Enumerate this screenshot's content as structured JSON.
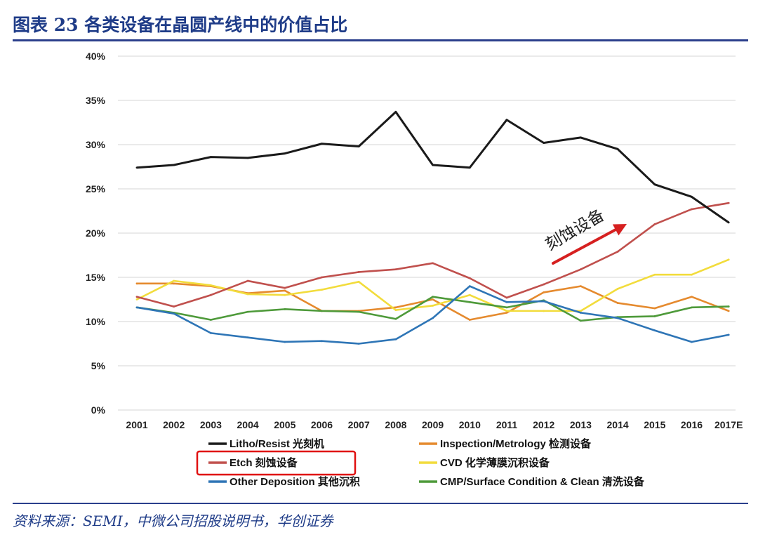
{
  "figure_title": "图表 23   各类设备在晶圆产线中的价值占比",
  "source_note": "资料来源：SEMI，中微公司招股说明书，华创证券",
  "chart_data": {
    "type": "line",
    "x": [
      "2001",
      "2002",
      "2003",
      "2004",
      "2005",
      "2006",
      "2007",
      "2008",
      "2009",
      "2010",
      "2011",
      "2012",
      "2013",
      "2014",
      "2015",
      "2016",
      "2017E"
    ],
    "yticks": [
      "0%",
      "5%",
      "10%",
      "15%",
      "20%",
      "25%",
      "30%",
      "35%",
      "40%"
    ],
    "ylim": [
      0,
      40
    ],
    "grid": true,
    "legend_position": "bottom",
    "series": [
      {
        "name": "Litho/Resist 光刻机",
        "color": "#1a1a1a",
        "values": [
          27.4,
          27.7,
          28.6,
          28.5,
          29.0,
          30.1,
          29.8,
          33.7,
          27.7,
          27.4,
          32.8,
          30.2,
          30.8,
          29.5,
          25.5,
          24.1,
          21.2
        ]
      },
      {
        "name": "Etch 刻蚀设备",
        "color": "#c0504d",
        "values": [
          12.8,
          11.7,
          13.0,
          14.6,
          13.8,
          15.0,
          15.6,
          15.9,
          16.6,
          14.9,
          12.7,
          14.2,
          15.9,
          17.9,
          21.0,
          22.7,
          23.4
        ]
      },
      {
        "name": "Other Deposition 其他沉积",
        "color": "#2e75b6",
        "values": [
          11.6,
          10.9,
          8.7,
          8.2,
          7.7,
          7.8,
          7.5,
          8.0,
          10.4,
          14.0,
          12.2,
          12.3,
          11.0,
          10.4,
          9.0,
          7.7,
          8.5
        ]
      },
      {
        "name": "Inspection/Metrology 检测设备",
        "color": "#e58a2e",
        "values": [
          14.3,
          14.3,
          14.0,
          13.2,
          13.5,
          11.2,
          11.2,
          11.6,
          12.5,
          10.2,
          11.0,
          13.3,
          14.0,
          12.1,
          11.5,
          12.8,
          11.2
        ]
      },
      {
        "name": "CVD 化学薄膜沉积设备",
        "color": "#f2dc3c",
        "values": [
          12.5,
          14.6,
          14.1,
          13.1,
          13.0,
          13.6,
          14.5,
          11.3,
          11.8,
          13.0,
          11.2,
          11.2,
          11.2,
          13.7,
          15.3,
          15.3,
          17.0
        ]
      },
      {
        "name": "CMP/Surface Condition & Clean 清洗设备",
        "color": "#4e9a3a",
        "values": [
          11.6,
          11.0,
          10.2,
          11.1,
          11.4,
          11.2,
          11.1,
          10.3,
          12.8,
          12.2,
          11.6,
          12.4,
          10.1,
          10.5,
          10.6,
          11.6,
          11.7
        ]
      }
    ],
    "annotation": {
      "text": "刻蚀设备",
      "arrow_color": "#d62020"
    },
    "highlight_box_color": "#e01010"
  }
}
